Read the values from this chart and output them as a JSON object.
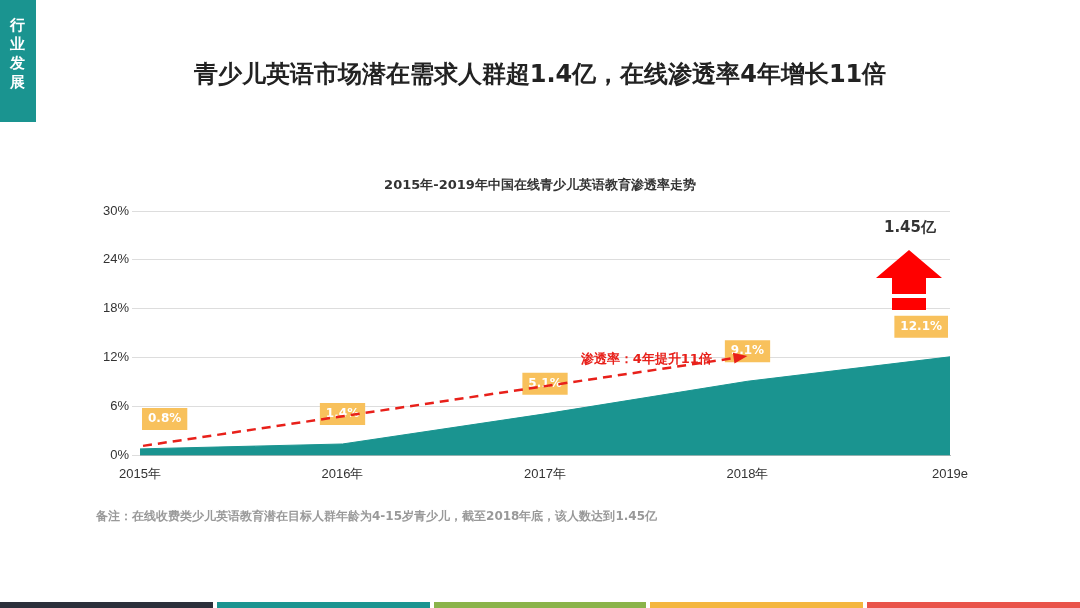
{
  "chart_data": {
    "type": "area",
    "title": "青少儿英语市场潜在需求人群超1.4亿，在线渗透率4年增长11倍",
    "subtitle": "2015年-2019年中国在线青少儿英语教育渗透率走势",
    "categories": [
      "2015年",
      "2016年",
      "2017年",
      "2018年",
      "2019e"
    ],
    "series": [
      {
        "color": "#1a9490",
        "values": [
          0.8,
          1.4,
          5.1,
          9.1,
          12.1
        ]
      }
    ],
    "ylim": [
      0,
      30
    ],
    "yticks": [
      {
        "value": 0,
        "label": "0%"
      },
      {
        "value": 6,
        "label": "6%"
      },
      {
        "value": 12,
        "label": "12%"
      },
      {
        "value": 18,
        "label": "18%"
      },
      {
        "value": 24,
        "label": "24%"
      },
      {
        "value": 30,
        "label": "30%"
      }
    ],
    "grid": "y",
    "legend": false,
    "marker": "none",
    "value_labels": [
      "0.8%",
      "1.4%",
      "5.1%",
      "9.1%",
      "12.1%"
    ],
    "annotations": [
      "行业发展",
      "渗透率：4年提升11倍",
      "1.45亿",
      "备注：在线收费类少儿英语教育潜在目标人群年龄为4-15岁青少儿，截至2018年底，该人数达到1.45亿"
    ]
  }
}
